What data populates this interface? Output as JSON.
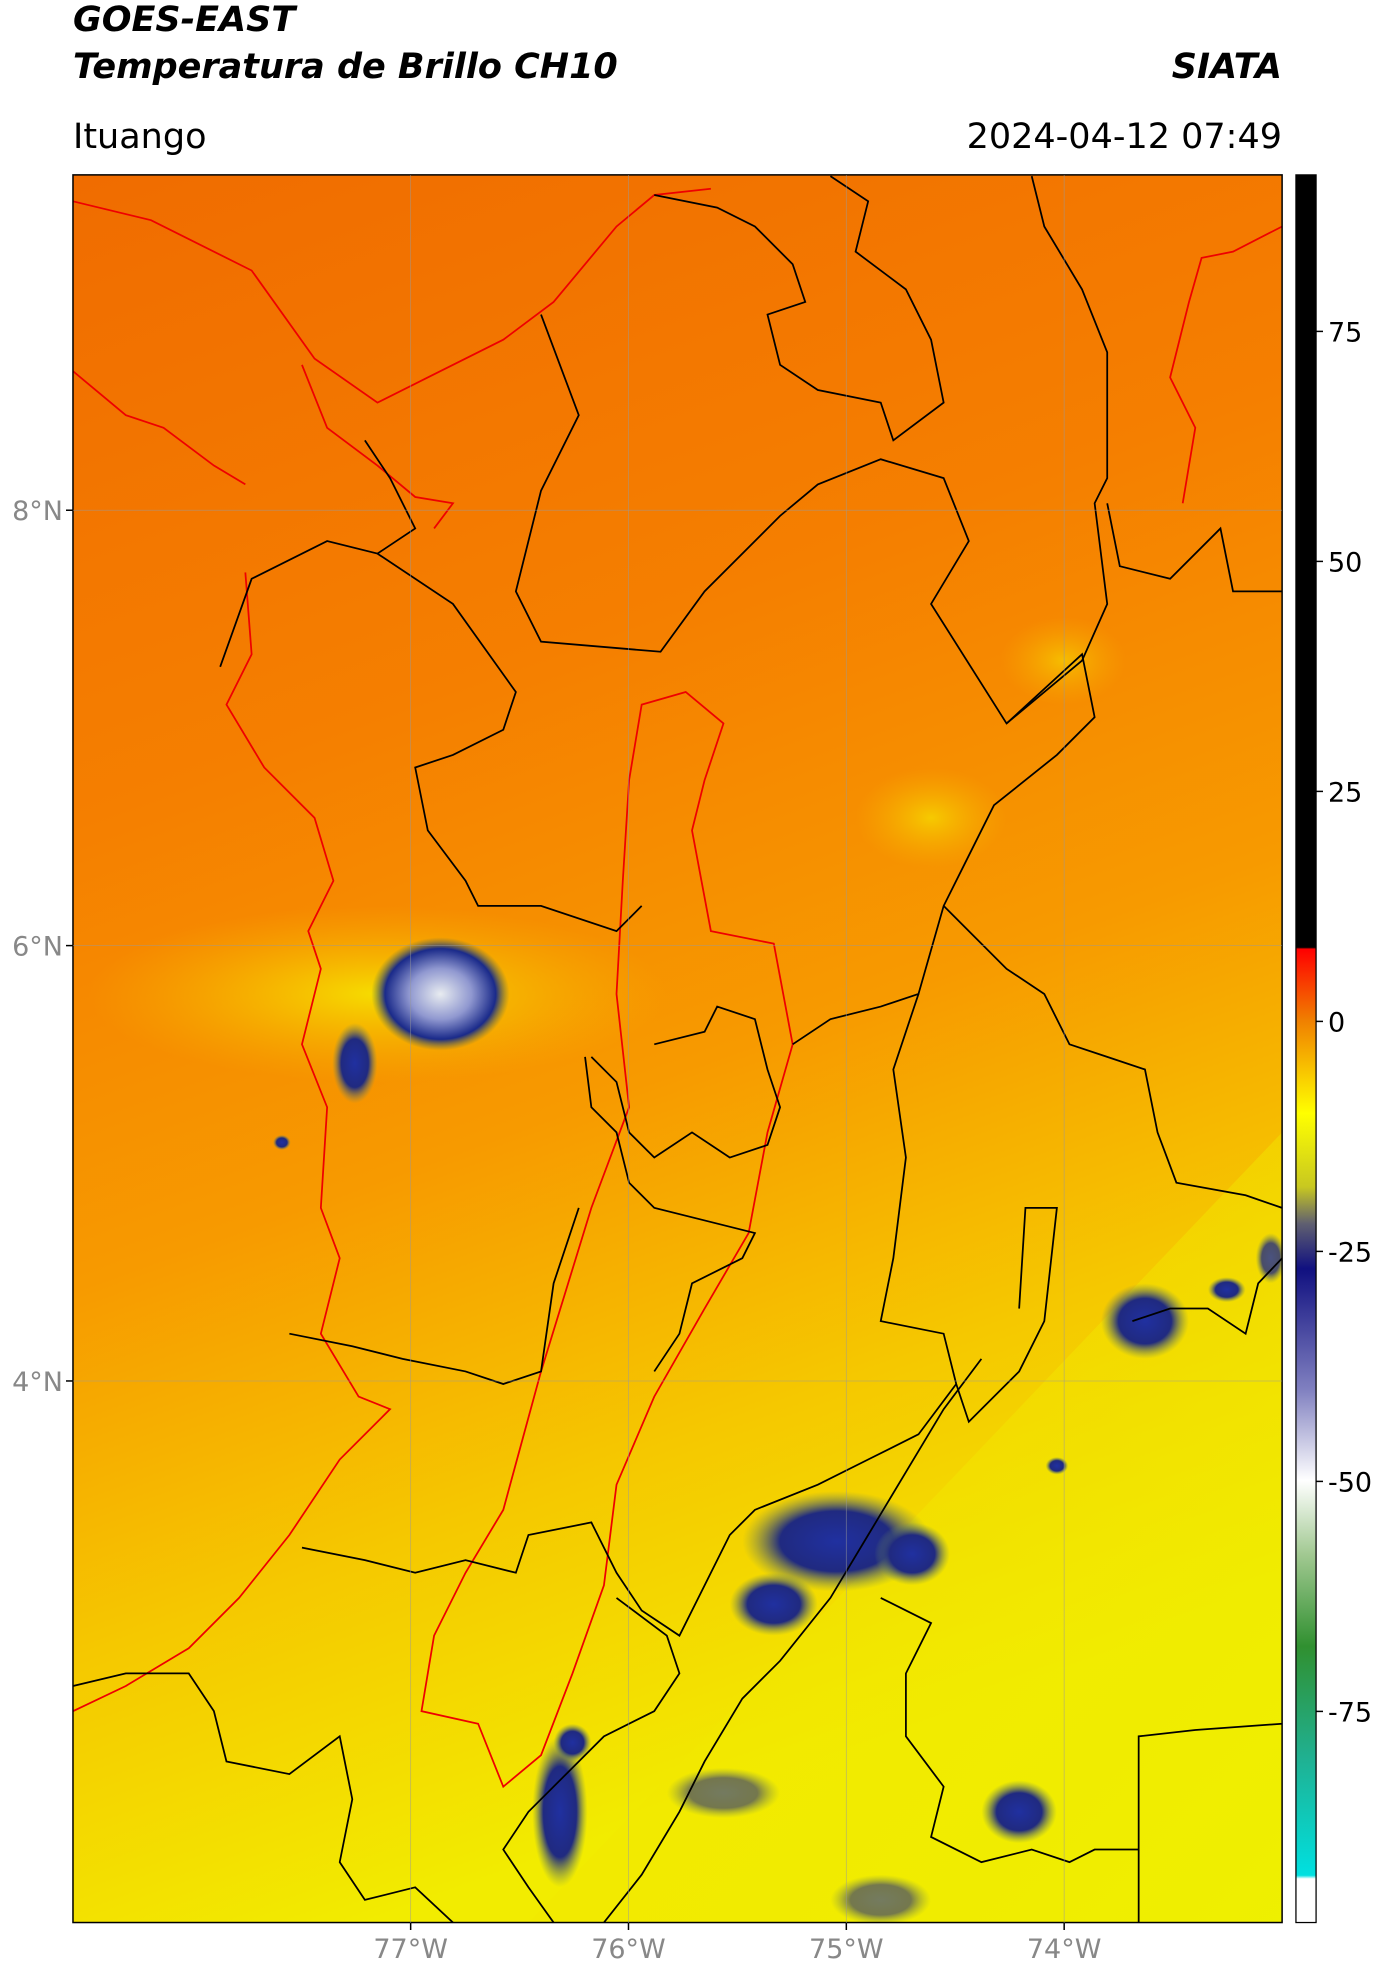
{
  "chart_data": {
    "type": "map",
    "title": "GOES-EAST",
    "subtitle": "Temperatura de Brillo CH10",
    "source": "SIATA",
    "location": "Ituango",
    "datetime": "2024-04-12 07:49",
    "xlim": [
      -78.55,
      -73.0
    ],
    "ylim": [
      1.51,
      9.54
    ],
    "xticks": [
      {
        "value": -77,
        "label": "77°W"
      },
      {
        "value": -76,
        "label": "76°W"
      },
      {
        "value": -75,
        "label": "75°W"
      },
      {
        "value": -74,
        "label": "74°W"
      }
    ],
    "yticks": [
      {
        "value": 8,
        "label": "8°N"
      },
      {
        "value": 6,
        "label": "6°N"
      },
      {
        "value": 4,
        "label": "4°N"
      }
    ],
    "grid": true,
    "colorbar": {
      "lim": [
        -98,
        92
      ],
      "ticks": [
        75,
        50,
        25,
        0,
        -25,
        -50,
        -75
      ]
    }
  }
}
